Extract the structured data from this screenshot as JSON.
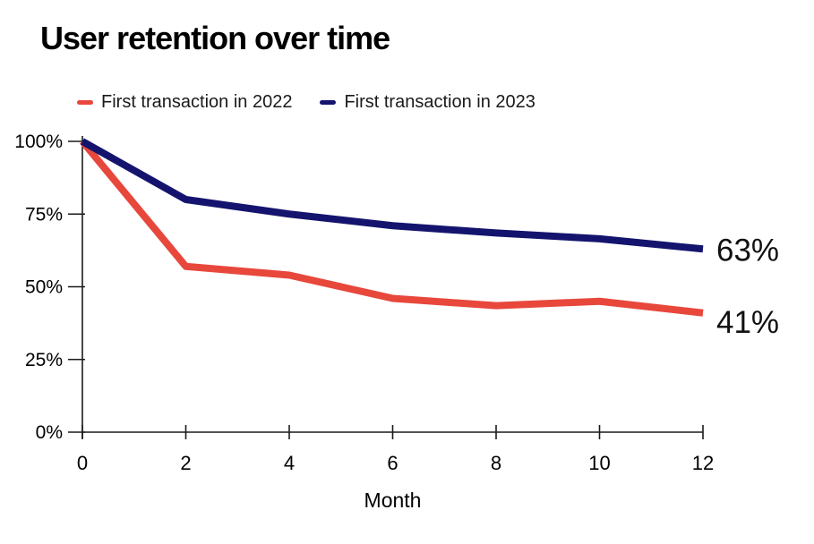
{
  "title": "User retention over time",
  "legend": [
    {
      "label": "First transaction in 2022",
      "color": "#E8473C"
    },
    {
      "label": "First transaction in 2023",
      "color": "#14146E"
    }
  ],
  "chart_data": {
    "type": "line",
    "title": "User retention over time",
    "xlabel": "Month",
    "ylabel": "",
    "xlim": [
      0,
      12
    ],
    "ylim": [
      0,
      100
    ],
    "grid": false,
    "legend_position": "top",
    "x_ticks": [
      "0",
      "2",
      "4",
      "6",
      "8",
      "10",
      "12"
    ],
    "x_tick_values": [
      0,
      2,
      4,
      6,
      8,
      10,
      12
    ],
    "y_ticks": [
      "0%",
      "25%",
      "50%",
      "75%",
      "100%"
    ],
    "y_tick_values": [
      0,
      25,
      50,
      75,
      100
    ],
    "series": [
      {
        "name": "First transaction in 2022",
        "color": "#E8473C",
        "x": [
          0,
          2,
          3,
          4,
          6,
          8,
          10,
          12
        ],
        "y": [
          100,
          57,
          55.5,
          54,
          46,
          43.5,
          45,
          41
        ],
        "end_label": "41%"
      },
      {
        "name": "First transaction in 2023",
        "color": "#14146E",
        "x": [
          0,
          2,
          3,
          4,
          6,
          8,
          10,
          12
        ],
        "y": [
          100,
          80,
          77.5,
          75,
          71,
          68.5,
          66.5,
          63
        ],
        "end_label": "63%"
      }
    ],
    "annotations": [
      "63%",
      "41%"
    ]
  }
}
